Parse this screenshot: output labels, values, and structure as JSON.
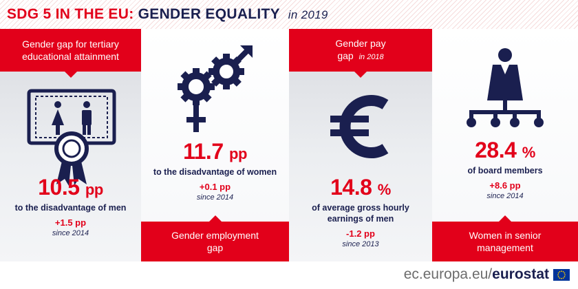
{
  "title": {
    "part1": "SDG 5 IN THE EU:",
    "part2": "GENDER EQUALITY",
    "year": "in 2019"
  },
  "panels": [
    {
      "label": [
        "Gender gap for tertiary",
        "educational attainment"
      ],
      "label_year": "",
      "icon": "diploma-certificate-icon",
      "value": "10.5",
      "unit": "pp",
      "description": [
        "to the disadvantage of men"
      ],
      "change": "+1.5 pp",
      "since": "since 2014"
    },
    {
      "label": [
        "Gender employment",
        "gap"
      ],
      "label_year": "",
      "icon": "gender-gears-icon",
      "value": "11.7",
      "unit": "pp",
      "description": [
        "to the disadvantage of women"
      ],
      "change": "+0.1 pp",
      "since": "since 2014"
    },
    {
      "label": [
        "Gender pay",
        "gap"
      ],
      "label_year": "in 2018",
      "icon": "euro-icon",
      "value": "14.8",
      "unit": "%",
      "description": [
        "of average gross hourly",
        "earnings of men"
      ],
      "change": "-1.2 pp",
      "since": "since 2013"
    },
    {
      "label": [
        "Women in senior",
        "management"
      ],
      "label_year": "",
      "icon": "org-chart-woman-icon",
      "value": "28.4",
      "unit": "%",
      "description": [
        "of board members"
      ],
      "change": "+8.6 pp",
      "since": "since 2014"
    }
  ],
  "footer": {
    "site": "ec.europa.eu/",
    "brand": "eurostat",
    "flag_icon": "eu-flag-icon"
  },
  "colors": {
    "accent_red": "#e2001a",
    "navy": "#1a1f4f"
  }
}
